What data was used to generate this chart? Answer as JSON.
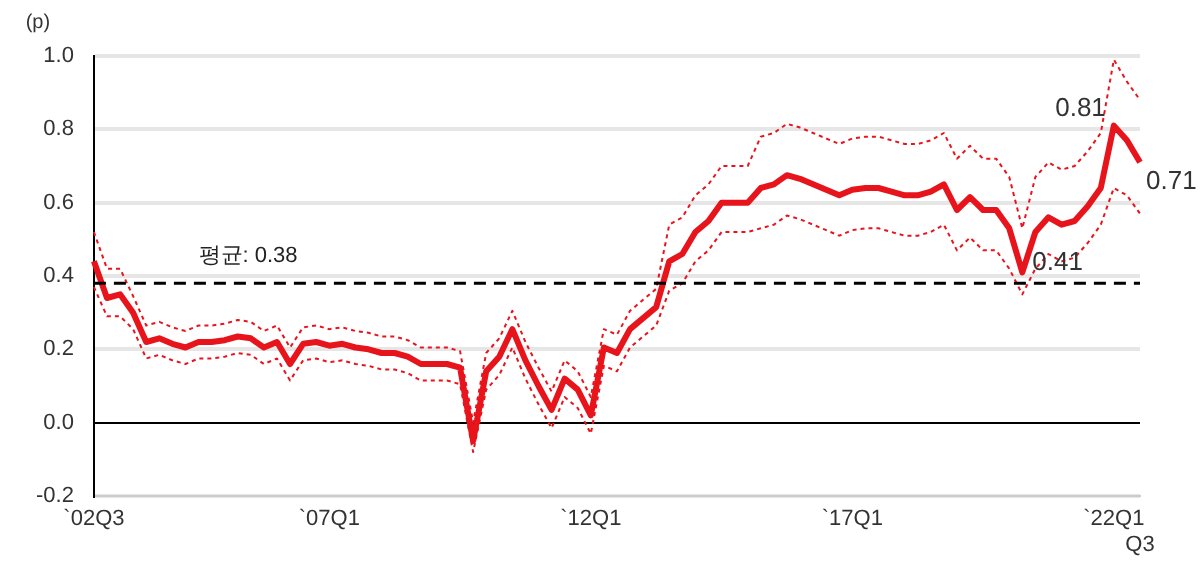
{
  "chart_data": {
    "type": "line",
    "ylabel": "(p)",
    "categories": [
      "`02Q3",
      null,
      null,
      null,
      null,
      null,
      null,
      null,
      null,
      null,
      null,
      null,
      null,
      null,
      null,
      null,
      null,
      null,
      "`07Q1",
      null,
      null,
      null,
      null,
      null,
      null,
      null,
      null,
      null,
      null,
      null,
      null,
      null,
      null,
      null,
      null,
      null,
      null,
      null,
      "`12Q1",
      null,
      null,
      null,
      null,
      null,
      null,
      null,
      null,
      null,
      null,
      null,
      null,
      null,
      null,
      null,
      null,
      null,
      null,
      null,
      "`17Q1",
      null,
      null,
      null,
      null,
      null,
      null,
      null,
      null,
      null,
      null,
      null,
      null,
      null,
      null,
      null,
      null,
      null,
      null,
      null,
      "`22Q1",
      null,
      "Q3"
    ],
    "series": [
      {
        "color": "#e8141c",
        "line_style": "solid",
        "values": [
          0.44,
          0.34,
          0.35,
          0.3,
          0.22,
          0.23,
          0.215,
          0.205,
          0.22,
          0.22,
          0.225,
          0.235,
          0.23,
          0.205,
          0.22,
          0.16,
          0.215,
          0.22,
          0.21,
          0.215,
          0.205,
          0.2,
          0.19,
          0.19,
          0.18,
          0.16,
          0.16,
          0.16,
          0.15,
          -0.05,
          0.14,
          0.18,
          0.255,
          0.17,
          0.1,
          0.035,
          0.12,
          0.09,
          0.02,
          0.205,
          0.19,
          0.255,
          0.285,
          0.315,
          0.44,
          0.46,
          0.52,
          0.55,
          0.6,
          0.6,
          0.6,
          0.64,
          0.65,
          0.675,
          0.665,
          0.65,
          0.635,
          0.62,
          0.635,
          0.64,
          0.64,
          0.63,
          0.62,
          0.62,
          0.63,
          0.65,
          0.58,
          0.615,
          0.58,
          0.58,
          0.53,
          0.41,
          0.52,
          0.56,
          0.54,
          0.55,
          0.59,
          0.64,
          0.81,
          0.77,
          0.71
        ],
        "value_labels": [
          null,
          null,
          null,
          null,
          null,
          null,
          null,
          null,
          null,
          null,
          null,
          null,
          null,
          null,
          null,
          null,
          null,
          null,
          null,
          null,
          null,
          null,
          null,
          null,
          null,
          null,
          null,
          null,
          null,
          null,
          null,
          null,
          null,
          null,
          null,
          null,
          null,
          null,
          null,
          null,
          null,
          null,
          null,
          null,
          null,
          null,
          null,
          null,
          null,
          null,
          null,
          null,
          null,
          null,
          null,
          null,
          null,
          null,
          null,
          null,
          null,
          null,
          null,
          null,
          null,
          null,
          null,
          null,
          null,
          null,
          null,
          "0.41",
          null,
          null,
          null,
          null,
          null,
          null,
          "0.81",
          null,
          "0.71"
        ]
      },
      {
        "color": "#e8141c",
        "line_style": "dotted",
        "values": [
          0.52,
          0.42,
          0.42,
          0.345,
          0.265,
          0.275,
          0.26,
          0.25,
          0.265,
          0.265,
          0.27,
          0.28,
          0.275,
          0.25,
          0.265,
          0.205,
          0.26,
          0.265,
          0.255,
          0.26,
          0.25,
          0.245,
          0.235,
          0.235,
          0.225,
          0.205,
          0.205,
          0.205,
          0.195,
          0.0,
          0.19,
          0.23,
          0.305,
          0.22,
          0.15,
          0.085,
          0.17,
          0.14,
          0.07,
          0.255,
          0.24,
          0.305,
          0.335,
          0.365,
          0.54,
          0.56,
          0.62,
          0.65,
          0.7,
          0.7,
          0.7,
          0.78,
          0.79,
          0.815,
          0.805,
          0.79,
          0.775,
          0.76,
          0.775,
          0.78,
          0.78,
          0.77,
          0.76,
          0.76,
          0.77,
          0.79,
          0.72,
          0.755,
          0.72,
          0.72,
          0.67,
          0.53,
          0.67,
          0.71,
          0.69,
          0.7,
          0.74,
          0.79,
          0.99,
          0.93,
          0.88
        ]
      },
      {
        "color": "#e8141c",
        "line_style": "dotted",
        "values": [
          0.37,
          0.29,
          0.29,
          0.255,
          0.175,
          0.185,
          0.17,
          0.16,
          0.175,
          0.175,
          0.18,
          0.19,
          0.185,
          0.16,
          0.175,
          0.115,
          0.17,
          0.175,
          0.165,
          0.17,
          0.16,
          0.155,
          0.145,
          0.145,
          0.135,
          0.115,
          0.115,
          0.115,
          0.105,
          -0.08,
          0.09,
          0.13,
          0.205,
          0.12,
          0.05,
          -0.015,
          0.07,
          0.04,
          -0.03,
          0.155,
          0.14,
          0.205,
          0.235,
          0.265,
          0.36,
          0.38,
          0.44,
          0.47,
          0.52,
          0.52,
          0.52,
          0.53,
          0.54,
          0.565,
          0.555,
          0.54,
          0.525,
          0.51,
          0.525,
          0.53,
          0.53,
          0.52,
          0.51,
          0.51,
          0.52,
          0.54,
          0.47,
          0.505,
          0.47,
          0.47,
          0.42,
          0.35,
          0.42,
          0.46,
          0.44,
          0.45,
          0.49,
          0.54,
          0.64,
          0.62,
          0.57
        ]
      }
    ],
    "ylim": [
      -0.2,
      1.0
    ],
    "yticks": [
      {
        "value": -0.2,
        "label": "-0.2"
      },
      {
        "value": 0,
        "label": "0.0"
      },
      {
        "value": 0.2,
        "label": "0.2"
      },
      {
        "value": 0.4,
        "label": "0.4"
      },
      {
        "value": 0.6,
        "label": "0.6"
      },
      {
        "value": 0.8,
        "label": "0.8"
      },
      {
        "value": 1.0,
        "label": "1.0"
      }
    ],
    "grid": "y",
    "legend": false,
    "marker": "none",
    "ref_lines": [
      {
        "axis": "y",
        "value": 0.38,
        "label": "평균: 0.38",
        "color": "#000000",
        "line_style": "dashed"
      }
    ]
  }
}
